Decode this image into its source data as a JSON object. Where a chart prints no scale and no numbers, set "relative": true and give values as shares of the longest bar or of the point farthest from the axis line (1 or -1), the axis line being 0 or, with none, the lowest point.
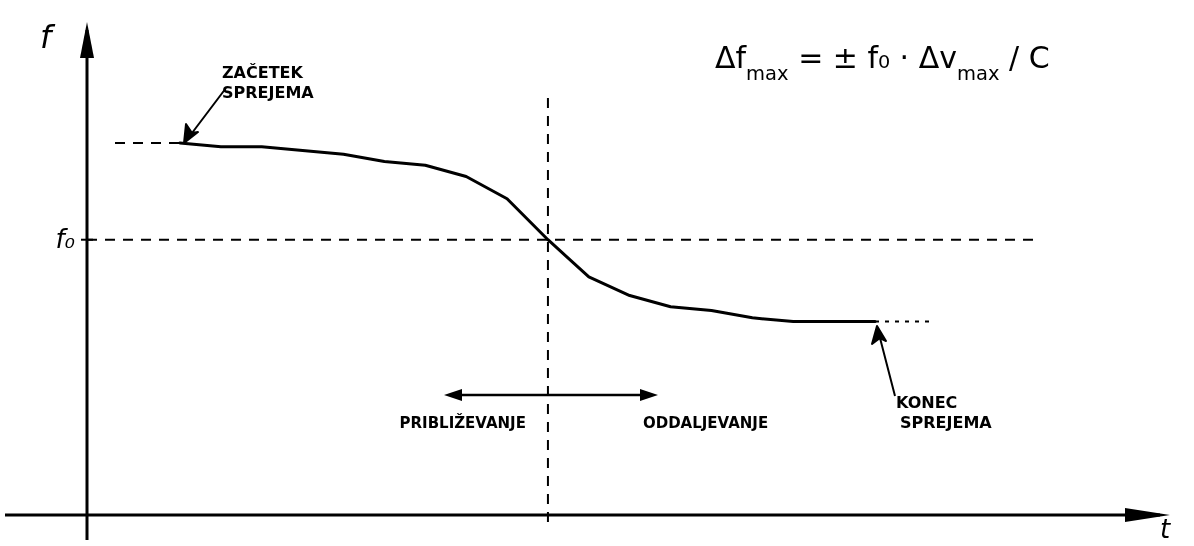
{
  "chart_data": {
    "type": "line",
    "relative": true,
    "ylabel": "f",
    "line_style": "solid",
    "categories": [
      null,
      null,
      null,
      null,
      null,
      null,
      null,
      null,
      null,
      null,
      null,
      null,
      null,
      null,
      null,
      null,
      null,
      null
    ],
    "series": [
      {
        "color": "#000000",
        "values": [
          1.0,
          0.99,
          0.99,
          0.98,
          0.97,
          0.95,
          0.94,
          0.91,
          0.85,
          0.74,
          0.64,
          0.59,
          0.56,
          0.55,
          0.53,
          0.52,
          0.52,
          0.52
        ]
      }
    ],
    "ref_lines": [
      {
        "axis": "y",
        "value": 0.74,
        "label": "f₀",
        "line_style": "dashed",
        "color": "#000000"
      }
    ],
    "annotations": [
      "ZAČETEK SPREJEMA",
      "KONEC SPREJEMA",
      "PRIBLIŽEVANJE",
      "ODDALJEVANJE",
      "Δf$_{max}$ = ± f₀ · Δv$_{max}$ / C",
      "t"
    ]
  }
}
